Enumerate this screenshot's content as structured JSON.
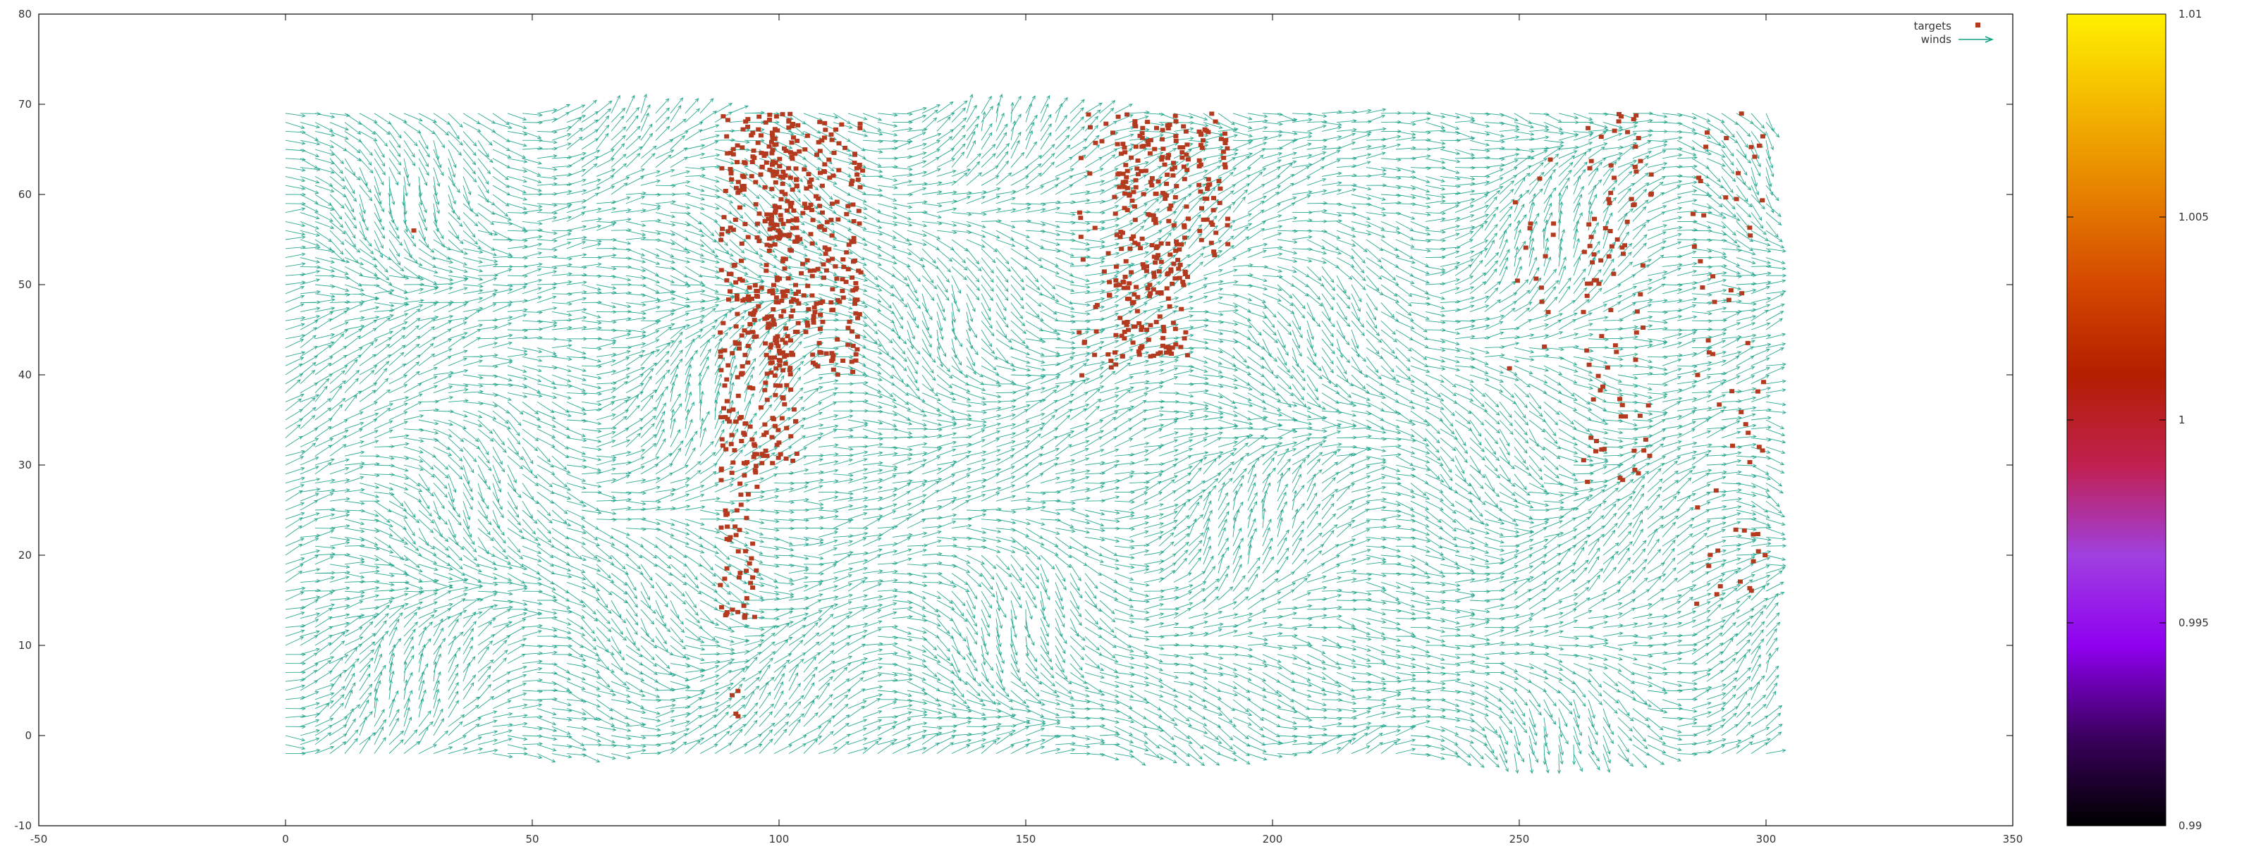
{
  "chart_data": {
    "type": "scatter",
    "title": "",
    "xlabel": "",
    "ylabel": "",
    "xlim": [
      -50,
      350
    ],
    "ylim": [
      -10,
      80
    ],
    "x_ticks": [
      -50,
      0,
      50,
      100,
      150,
      200,
      250,
      300,
      350
    ],
    "y_ticks": [
      -10,
      0,
      10,
      20,
      30,
      40,
      50,
      60,
      70,
      80
    ],
    "grid": false,
    "legend_placement": "top-right",
    "legend": [
      {
        "name": "targets",
        "kind": "point",
        "color": "#b33a1e"
      },
      {
        "name": "winds",
        "kind": "vector",
        "color": "#14a085"
      }
    ],
    "colorbar": {
      "min": 0.99,
      "max": 1.01,
      "ticks": [
        "1.01",
        "1.005",
        "1",
        "0.995",
        "0.99"
      ],
      "palette": [
        "#000000",
        "#3c0060",
        "#8f00f0",
        "#a040e0",
        "#c02050",
        "#b41e00",
        "#d44800",
        "#e68000",
        "#f4b800",
        "#fff000"
      ]
    },
    "winds": {
      "color": "#14a085",
      "grid_x": [
        0,
        302
      ],
      "grid_y": [
        -2,
        69
      ],
      "dx": 3,
      "dy": 1,
      "vector_length_units": 4
    },
    "series": [
      {
        "name": "targets",
        "color": "#b33a1e",
        "clusters": [
          {
            "x": [
              88,
              104
            ],
            "y": [
              30,
              69
            ],
            "n": 320
          },
          {
            "x": [
              98,
              117
            ],
            "y": [
              40,
              69
            ],
            "n": 260
          },
          {
            "x": [
              88,
              96
            ],
            "y": [
              13,
              34
            ],
            "n": 60
          },
          {
            "x": [
              90,
              92
            ],
            "y": [
              2,
              5
            ],
            "n": 4
          },
          {
            "x": [
              160,
              170
            ],
            "y": [
              39,
              69
            ],
            "n": 40
          },
          {
            "x": [
              168,
              183
            ],
            "y": [
              42,
              69
            ],
            "n": 240
          },
          {
            "x": [
              185,
              191
            ],
            "y": [
              53,
              69
            ],
            "n": 50
          },
          {
            "x": [
              248,
              258
            ],
            "y": [
              37,
              65
            ],
            "n": 16
          },
          {
            "x": [
              263,
              277
            ],
            "y": [
              28,
              69
            ],
            "n": 90
          },
          {
            "x": [
              285,
              300
            ],
            "y": [
              14,
              69
            ],
            "n": 60
          },
          {
            "x": [
              26,
              26
            ],
            "y": [
              56,
              56
            ],
            "n": 1
          }
        ]
      }
    ]
  }
}
